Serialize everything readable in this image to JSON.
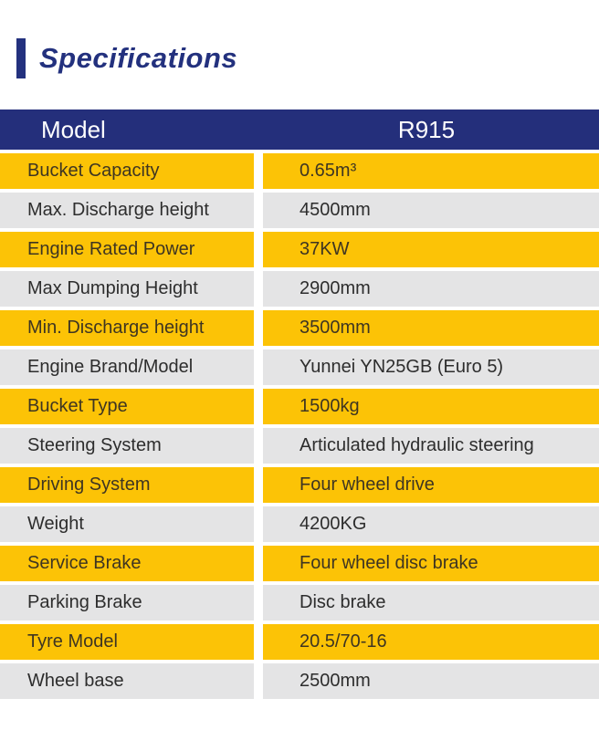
{
  "title": {
    "text": "Specifications",
    "color": "#23317e",
    "bar_color": "#23317e"
  },
  "table": {
    "header": {
      "label": "Model",
      "value": "R915",
      "bg_color": "#242f7b",
      "text_color": "#ffffff"
    },
    "colors": {
      "odd_row_bg": "#fcc306",
      "even_row_bg": "#e4e4e5",
      "odd_row_text": "#3e3522",
      "even_row_text": "#2d2d2d"
    },
    "rows": [
      {
        "label": "Bucket Capacity",
        "value": "0.65m³"
      },
      {
        "label": "Max. Discharge height",
        "value": "4500mm"
      },
      {
        "label": "Engine Rated Power",
        "value": "37KW"
      },
      {
        "label": "Max Dumping Height",
        "value": "2900mm"
      },
      {
        "label": "Min. Discharge height",
        "value": "3500mm"
      },
      {
        "label": "Engine Brand/Model",
        "value": "Yunnei YN25GB (Euro 5)"
      },
      {
        "label": "Bucket Type",
        "value": "1500kg"
      },
      {
        "label": "Steering System",
        "value": "Articulated hydraulic steering"
      },
      {
        "label": "Driving System",
        "value": "Four wheel drive"
      },
      {
        "label": "Weight",
        "value": "4200KG"
      },
      {
        "label": "Service Brake",
        "value": "Four wheel disc brake"
      },
      {
        "label": "Parking Brake",
        "value": "Disc brake"
      },
      {
        "label": "Tyre Model",
        "value": "20.5/70-16"
      },
      {
        "label": "Wheel base",
        "value": "2500mm"
      }
    ]
  }
}
